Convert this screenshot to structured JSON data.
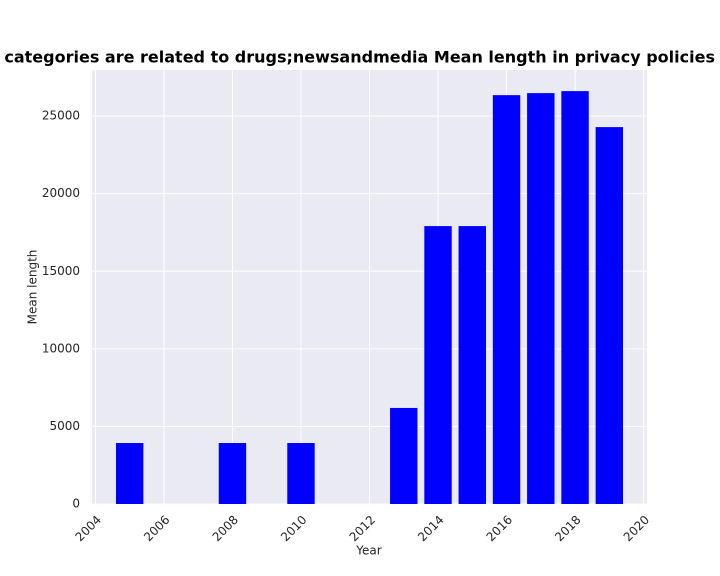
{
  "chart_data": {
    "type": "bar",
    "title": "when categories are related to drugs;newsandmedia Mean length in privacy policies by Year",
    "x_label": "Year",
    "y_label": "Mean length",
    "x": [
      2005,
      2008,
      2010,
      2013,
      2014,
      2015,
      2016,
      2017,
      2018,
      2019
    ],
    "values": [
      3930,
      3930,
      3930,
      6190,
      17910,
      17910,
      26350,
      26480,
      26610,
      24290
    ],
    "color": "#0000ff",
    "xlim": [
      2003.9,
      2020.1
    ],
    "xticks": [
      2004,
      2006,
      2008,
      2010,
      2012,
      2014,
      2016,
      2018,
      2020
    ],
    "ylim": [
      0,
      27970
    ],
    "yticks": [
      0,
      5000,
      10000,
      15000,
      20000,
      25000
    ],
    "grid": true
  }
}
